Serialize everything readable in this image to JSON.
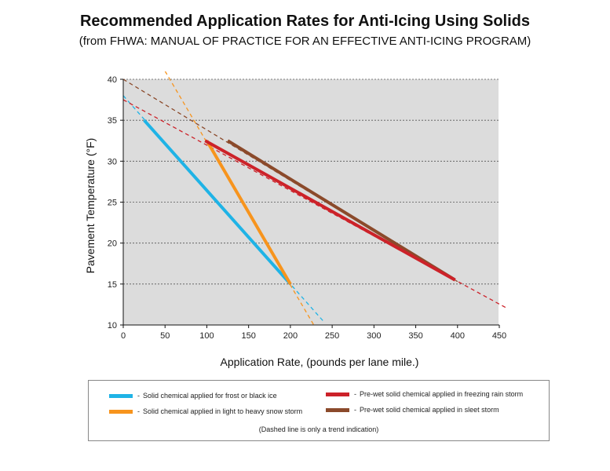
{
  "chart_data": {
    "type": "line",
    "title": "Recommended Application Rates for Anti-Icing Using Solids",
    "subtitle": "(from FHWA: MANUAL OF PRACTICE FOR AN EFFECTIVE ANTI-ICING PROGRAM)",
    "xlabel": "Application Rate, (pounds per lane mile.)",
    "ylabel": "Pavement Temperature (°F)",
    "xlim": [
      0,
      450
    ],
    "ylim": [
      10,
      40
    ],
    "xticks": [
      "0",
      "50",
      "100",
      "150",
      "200",
      "250",
      "300",
      "350",
      "400",
      "450"
    ],
    "yticks": [
      "10",
      "15",
      "20",
      "25",
      "30",
      "35",
      "40"
    ],
    "grid": "horizontal dotted",
    "series": [
      {
        "name": "Solid chemical applied for frost or black ice",
        "color": "#1fb3e6",
        "values": [
          [
            25,
            35
          ],
          [
            200,
            15
          ]
        ],
        "trend": [
          [
            0,
            38
          ],
          [
            240,
            10.4
          ]
        ]
      },
      {
        "name": "Solid chemical applied in light to heavy snow storm",
        "color": "#f7941d",
        "values": [
          [
            100,
            32.5
          ],
          [
            200,
            15
          ]
        ],
        "trend": [
          [
            50,
            41
          ],
          [
            228,
            10
          ]
        ]
      },
      {
        "name": "Pre-wet solid chemical applied in freezing rain storm",
        "color": "#cc2229",
        "values": [
          [
            98,
            32.5
          ],
          [
            397,
            15.5
          ]
        ],
        "trend": [
          [
            0,
            37.5
          ],
          [
            460,
            12
          ]
        ]
      },
      {
        "name": "Pre-wet solid chemical applied in sleet storm",
        "color": "#8b4a2b",
        "values": [
          [
            125,
            32.5
          ],
          [
            397,
            15.5
          ]
        ],
        "trend": [
          [
            0,
            40
          ],
          [
            400,
            15.3
          ]
        ]
      }
    ],
    "legend_note": "(Dashed line is only a trend indication)",
    "legend_placement": "bottom"
  }
}
